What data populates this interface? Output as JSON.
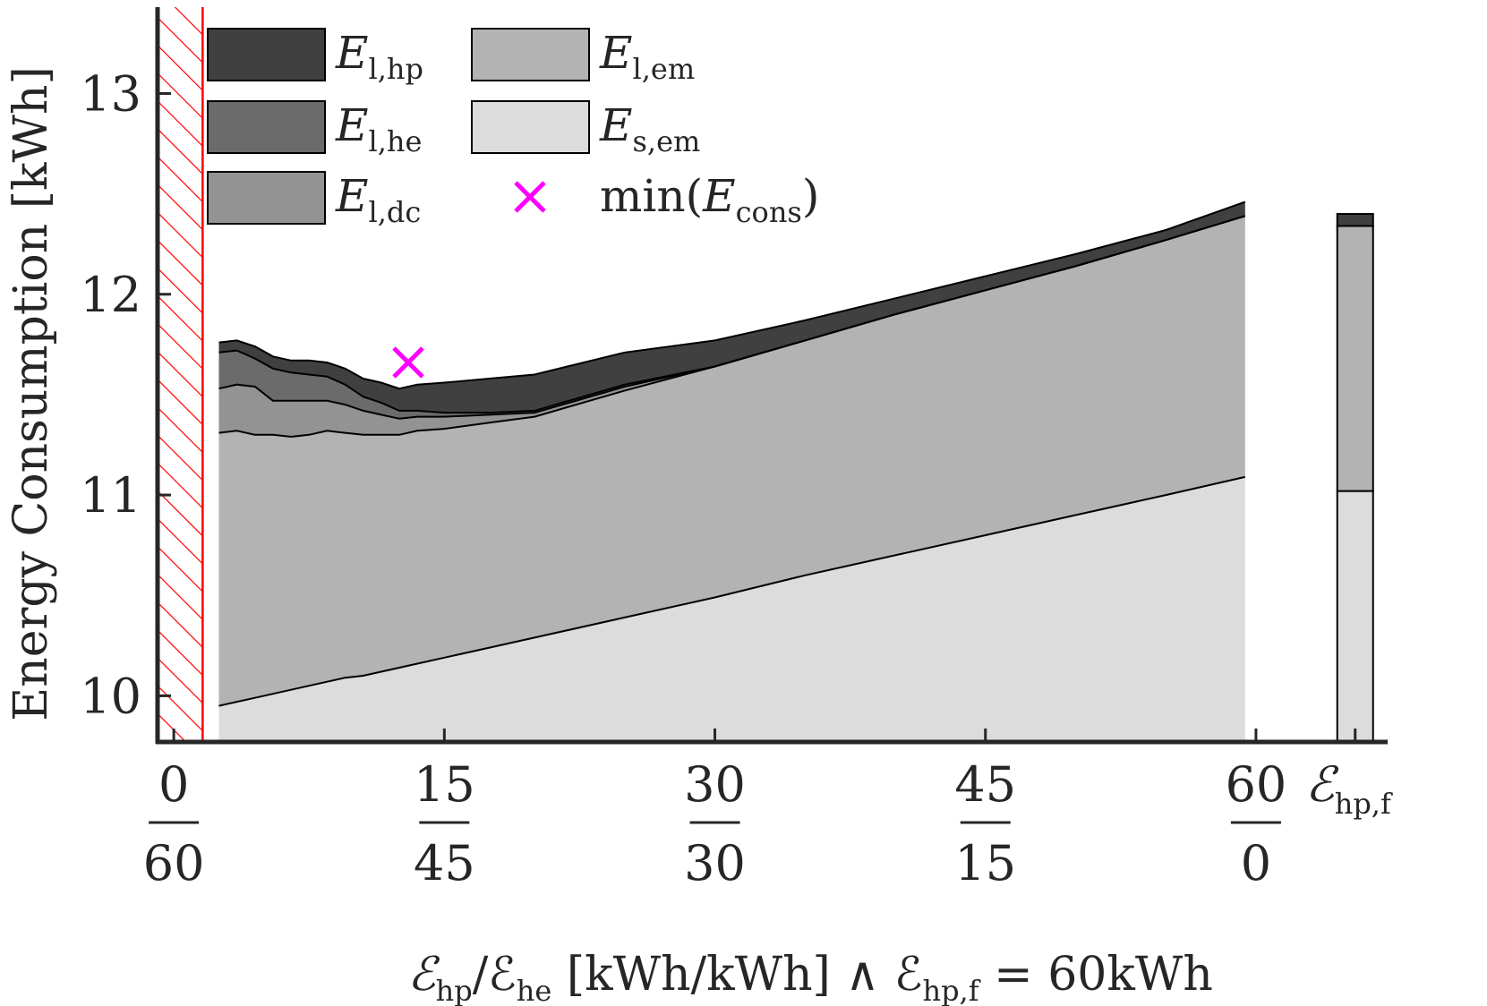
{
  "chart_data": {
    "type": "area",
    "ylabel": "Energy Consumption [kWh]",
    "xlabel": {
      "prefix": "ℰ",
      "sub1": "hp",
      "slash": "/ℰ",
      "sub2": "he",
      "middle": " [kWh/kWh] ∧ ℰ",
      "sub3": "hp,f",
      "suffix": " = 60kWh"
    },
    "ylim": [
      9.77,
      13.43
    ],
    "xlim": [
      -0.9,
      67.3
    ],
    "y_ticks": [
      10,
      11,
      12,
      13
    ],
    "x_ticks": [
      {
        "x": 0,
        "num": "0",
        "den": "60"
      },
      {
        "x": 15,
        "num": "15",
        "den": "45"
      },
      {
        "x": 30,
        "num": "30",
        "den": "30"
      },
      {
        "x": 45,
        "num": "45",
        "den": "15"
      },
      {
        "x": 60,
        "num": "60",
        "den": "0"
      }
    ],
    "extra_tick": {
      "x": 65.5,
      "label": "ℰ",
      "sub": "hp,f"
    },
    "infeasible_region": {
      "x_from": -0.9,
      "x_to": 1.6,
      "color": "#ff0000"
    },
    "x": [
      2.5,
      3.5,
      4.5,
      5.5,
      6.5,
      7.5,
      8.5,
      9.5,
      10.5,
      11.5,
      12.5,
      13.5,
      15,
      17.5,
      20,
      25,
      30,
      35,
      40,
      45,
      50,
      55,
      59.4
    ],
    "series": [
      {
        "name": "E_l,hp",
        "color": "#404040",
        "values": [
          0.05,
          0.05,
          0.06,
          0.06,
          0.06,
          0.07,
          0.07,
          0.08,
          0.09,
          0.1,
          0.11,
          0.13,
          0.15,
          0.17,
          0.18,
          0.16,
          0.13,
          0.1,
          0.08,
          0.07,
          0.06,
          0.05,
          0.07
        ]
      },
      {
        "name": "E_l,he",
        "color": "#6b6b6b",
        "values": [
          0.18,
          0.17,
          0.14,
          0.16,
          0.14,
          0.13,
          0.12,
          0.1,
          0.07,
          0.06,
          0.04,
          0.03,
          0.02,
          0.01,
          0.01,
          0.01,
          0.0,
          0.0,
          0.0,
          0.0,
          0.0,
          0.0,
          0.0
        ]
      },
      {
        "name": "E_l,dc",
        "color": "#939393",
        "values": [
          0.22,
          0.23,
          0.24,
          0.17,
          0.18,
          0.17,
          0.15,
          0.14,
          0.12,
          0.1,
          0.08,
          0.07,
          0.06,
          0.04,
          0.02,
          0.02,
          0.0,
          0.0,
          0.0,
          0.0,
          0.0,
          0.0,
          0.0
        ]
      },
      {
        "name": "E_l,em",
        "color": "#b3b3b3",
        "values": [
          1.36,
          1.35,
          1.31,
          1.29,
          1.26,
          1.25,
          1.25,
          1.22,
          1.2,
          1.18,
          1.16,
          1.16,
          1.14,
          1.12,
          1.1,
          1.13,
          1.15,
          1.17,
          1.2,
          1.22,
          1.24,
          1.27,
          1.3
        ]
      },
      {
        "name": "E_s,em",
        "color": "#dcdcdc",
        "values": [
          9.95,
          9.97,
          9.99,
          10.01,
          10.03,
          10.05,
          10.07,
          10.09,
          10.1,
          10.12,
          10.14,
          10.16,
          10.19,
          10.24,
          10.29,
          10.39,
          10.49,
          10.6,
          10.7,
          10.8,
          10.9,
          11.0,
          11.09
        ]
      }
    ],
    "reference_bar": {
      "x": 65.5,
      "values": [
        0.06,
        0.0,
        0.0,
        1.32,
        11.02
      ]
    },
    "marker": {
      "name": "min(E_cons)",
      "x": 13.0,
      "y": 11.66,
      "color": "#ff00ff"
    },
    "legend": {
      "placement": "top-left",
      "entries": [
        {
          "type": "patch",
          "color": "#404040",
          "main": "E",
          "sub": "l,hp"
        },
        {
          "type": "patch",
          "color": "#b3b3b3",
          "main": "E",
          "sub": "l,em"
        },
        {
          "type": "patch",
          "color": "#6b6b6b",
          "main": "E",
          "sub": "l,he"
        },
        {
          "type": "patch",
          "color": "#dcdcdc",
          "main": "E",
          "sub": "s,em"
        },
        {
          "type": "patch",
          "color": "#939393",
          "main": "E",
          "sub": "l,dc"
        },
        {
          "type": "marker",
          "color": "#ff00ff",
          "pre": "min(",
          "main": "E",
          "sub": "cons",
          "post": ")"
        }
      ]
    },
    "grid": false
  }
}
